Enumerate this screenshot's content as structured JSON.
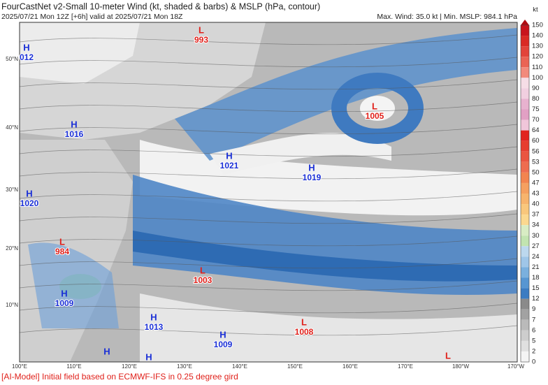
{
  "header": {
    "title": "FourCastNet v2-Small 10-meter Wind (kt, shaded & barbs) & MSLP (hPa, contour)",
    "subtitle": "2025/07/21 Mon 12Z [+6h] valid at 2025/07/21 Mon 18Z",
    "stats": "Max. Wind: 35.0 kt | Min. MSLP: 984.1 hPa"
  },
  "map": {
    "lat_labels": [
      "50°N",
      "40°N",
      "30°N",
      "20°N",
      "10°N"
    ],
    "lon_labels": [
      "100°E",
      "110°E",
      "120°E",
      "130°E",
      "140°E",
      "150°E",
      "160°E",
      "170°E",
      "180°W",
      "170°W"
    ],
    "systems": [
      {
        "kind": "L",
        "pressure": "993"
      },
      {
        "kind": "H",
        "pressure": "012"
      },
      {
        "kind": "L",
        "pressure": "1005"
      },
      {
        "kind": "H",
        "pressure": "1016"
      },
      {
        "kind": "H",
        "pressure": "1021"
      },
      {
        "kind": "H",
        "pressure": "1019"
      },
      {
        "kind": "H",
        "pressure": "1020"
      },
      {
        "kind": "L",
        "pressure": "984"
      },
      {
        "kind": "L",
        "pressure": "1003"
      },
      {
        "kind": "H",
        "pressure": "1009"
      },
      {
        "kind": "H",
        "pressure": "1013"
      },
      {
        "kind": "L",
        "pressure": "1008"
      },
      {
        "kind": "H",
        "pressure": "1009"
      },
      {
        "kind": "H"
      },
      {
        "kind": "H"
      },
      {
        "kind": "L"
      }
    ]
  },
  "colorbar": {
    "unit": "kt",
    "labels": [
      150,
      140,
      130,
      120,
      110,
      100,
      90,
      80,
      75,
      70,
      64,
      60,
      56,
      53,
      50,
      47,
      43,
      40,
      37,
      34,
      30,
      27,
      24,
      21,
      18,
      15,
      12,
      9,
      7,
      6,
      5,
      2,
      0
    ]
  },
  "footer": "[AI-Model] Initial field based on ECMWF-IFS in 0.25 degree gird"
}
